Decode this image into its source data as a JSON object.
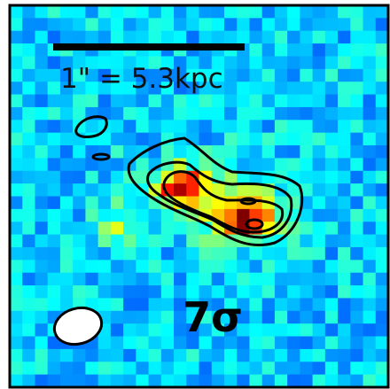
{
  "scale_bar": {
    "label": "1\" = 5.3kpc"
  },
  "significance": {
    "label": "7σ"
  }
}
